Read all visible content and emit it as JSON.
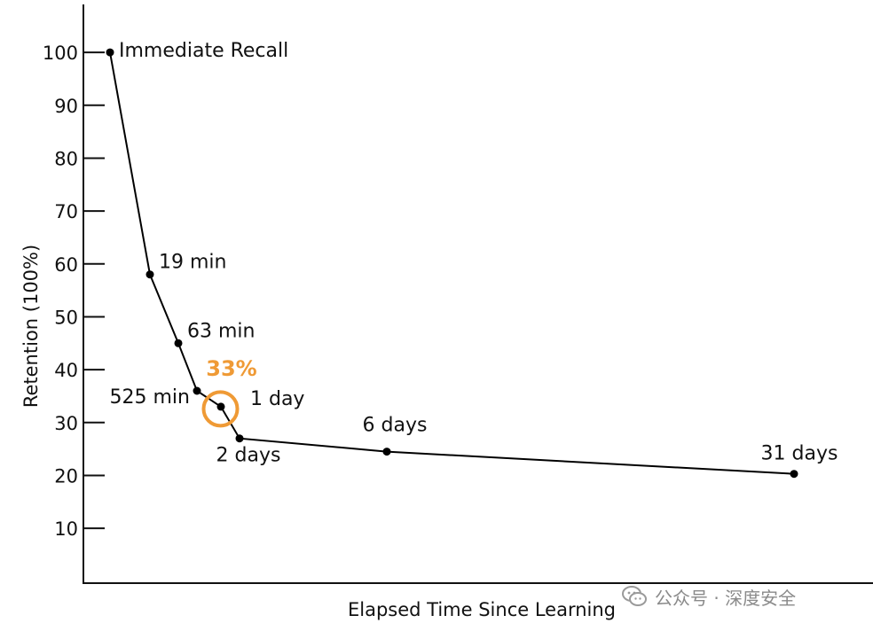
{
  "chart_data": {
    "type": "line",
    "title": "",
    "xlabel": "Elapsed Time Since Learning",
    "ylabel": "Retention (100%)",
    "ylim": [
      0,
      100
    ],
    "yticks": [
      "10",
      "20",
      "30",
      "40",
      "50",
      "60",
      "70",
      "80",
      "90",
      "100"
    ],
    "grid": false,
    "x": [
      "0 min",
      "19 min",
      "63 min",
      "525 min",
      "1 day",
      "2 days",
      "6 days",
      "31 days"
    ],
    "values": [
      100,
      58,
      45,
      36,
      33,
      27,
      24.5,
      20.3
    ],
    "point_labels": [
      "Immediate Recall",
      "19 min",
      "63 min",
      "525 min",
      "1 day",
      "2 days",
      "6 days",
      "31 days"
    ],
    "highlight": {
      "point": "1 day",
      "label": "33%",
      "color": "#ef9a35"
    },
    "line_color": "#000000"
  },
  "watermark": {
    "text": "公众号 · 深度安全",
    "icon": "wechat-icon"
  }
}
